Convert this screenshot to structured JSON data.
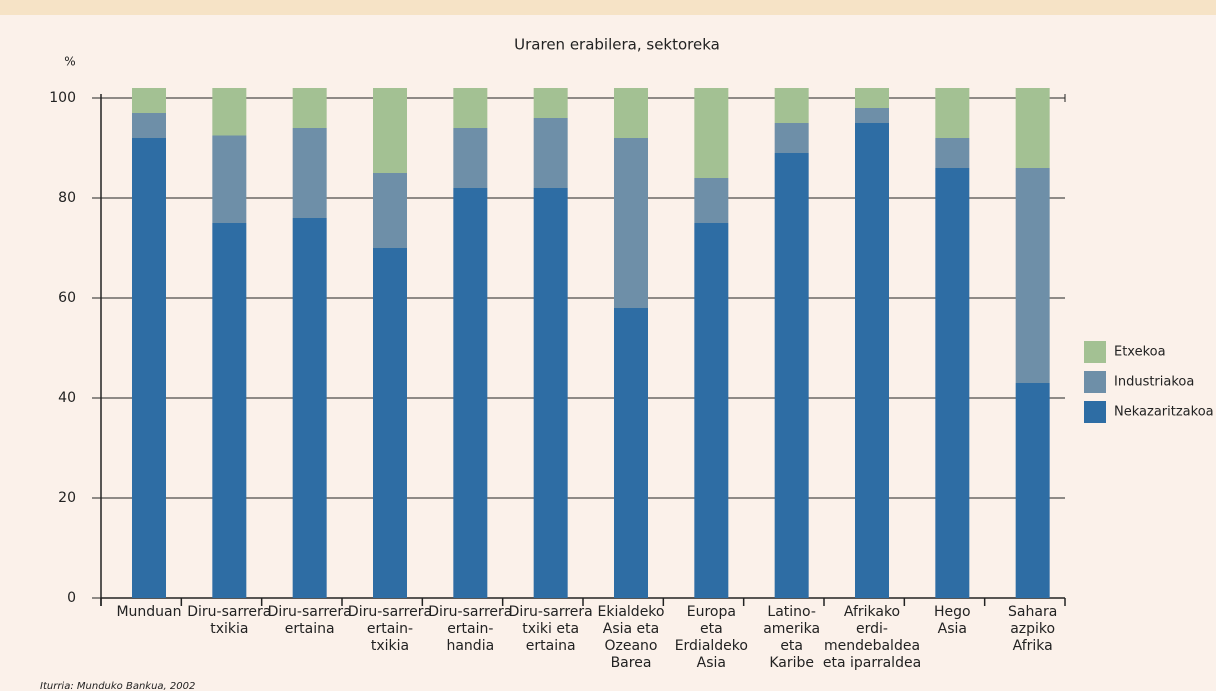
{
  "chart_data": {
    "type": "stacked-bar",
    "title": "Uraren erabilera, sektoreka",
    "ylabel": "%",
    "categories": [
      "Munduan",
      "Diru-sarrera\ntxikia",
      "Diru-sarrera\nertaina",
      "Diru-sarrera\nertain-\ntxikia",
      "Diru-sarrera\nertain-\nhandia",
      "Diru-sarrera\ntxiki eta\nertaina",
      "Ekialdeko\nAsia eta\nOzeano\nBarea",
      "Europa\neta\nErdialdeko\nAsia",
      "Latino-\namerika\neta\nKaribe",
      "Afrikako\nerdi-\nmendebaldea\neta iparraldea",
      "Hego\nAsia",
      "Sahara\nazpiko\nAfrika"
    ],
    "series": [
      {
        "name": "Nekazaritzakoa",
        "color": "#2e6da4",
        "values": [
          92,
          75,
          76,
          70,
          82,
          82,
          58,
          75,
          89,
          95,
          86,
          43
        ]
      },
      {
        "name": "Industriakoa",
        "color": "#6e8fa8",
        "values": [
          5,
          17.5,
          18,
          15,
          12,
          14,
          34,
          9,
          6,
          3,
          6,
          43
        ]
      },
      {
        "name": "Etxekoa",
        "color": "#a3c193",
        "values": [
          5,
          9.5,
          8,
          17,
          8,
          6,
          10,
          18,
          7,
          4,
          10,
          16
        ]
      }
    ],
    "ylim": [
      0,
      100
    ],
    "yticks": [
      0,
      20,
      40,
      60,
      80,
      100
    ],
    "grid": true,
    "source": "Iturria: Munduko Bankua, 2002"
  }
}
